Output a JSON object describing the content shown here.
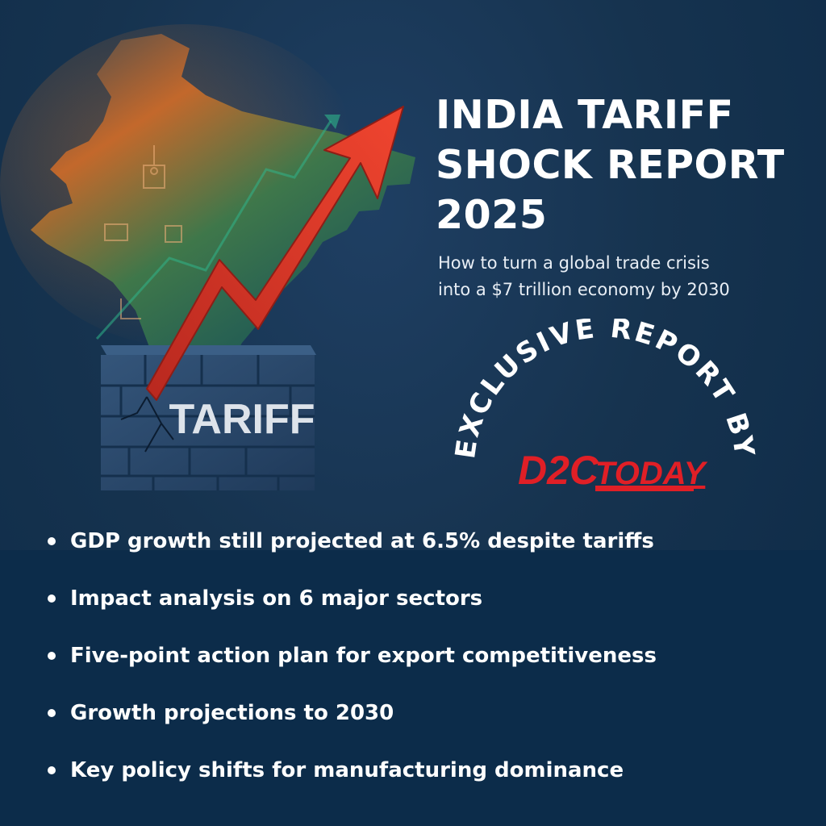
{
  "title_lines": [
    "INDIA TARIFF",
    "SHOCK REPORT",
    "2025"
  ],
  "subtitle_lines": [
    "How to turn a global trade crisis",
    "into a $7 trillion economy by 2030"
  ],
  "wall_label": "TARIFF",
  "badge": {
    "arc_text": "EXCLUSIVE REPORT BY",
    "brand_left": "D2C",
    "brand_right": "TODAY"
  },
  "bullets": [
    "GDP growth still projected at 6.5% despite tariffs",
    "Impact analysis on 6 major sectors",
    "Five-point action plan for export competitiveness",
    "Growth projections to 2030",
    "Key policy shifts for manufacturing dominance"
  ],
  "colors": {
    "background": "#16334f",
    "arrow_red": "#e8392b",
    "brand_red": "#e01f26",
    "map_orange": "#c96a2a",
    "map_green": "#1f7a55",
    "wall_blue": "#2a4a6e",
    "text_white": "#ffffff"
  },
  "icons": [
    "india-map-icon",
    "growth-arrow-icon",
    "brick-wall-icon",
    "chart-line-icon",
    "factory-icon"
  ]
}
